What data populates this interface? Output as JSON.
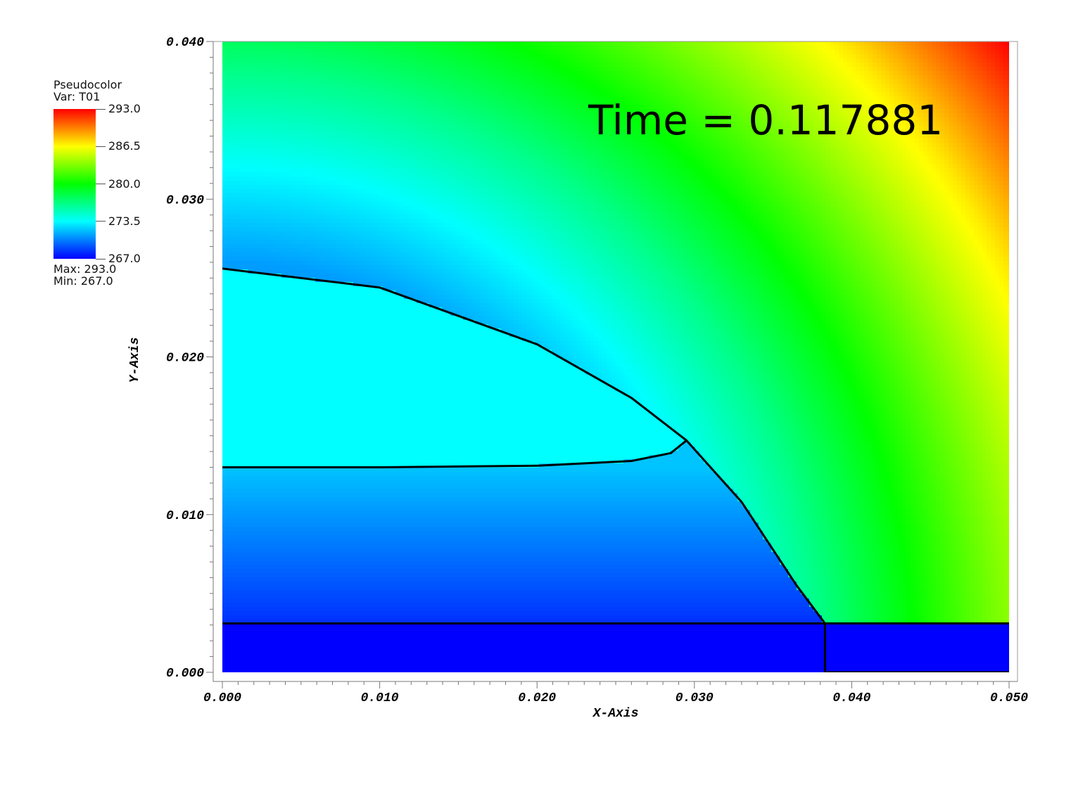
{
  "legend": {
    "title": "Pseudocolor",
    "var_label": "Var: T01",
    "max_label": "Max:  293.0",
    "min_label": "Min:  267.0",
    "ticks": [
      "293.0",
      "286.5",
      "280.0",
      "273.5",
      "267.0"
    ],
    "tick_values": [
      293.0,
      286.5,
      280.0,
      273.5,
      267.0
    ],
    "colormap": [
      "#0000ff",
      "#00ffff",
      "#00ff00",
      "#ffff00",
      "#ff0000"
    ]
  },
  "time_label": "Time = 0.117881",
  "chart_data": {
    "type": "heatmap",
    "title": "",
    "xlabel": "X-Axis",
    "ylabel": "Y-Axis",
    "xlim": [
      0.0,
      0.05
    ],
    "ylim": [
      0.0,
      0.04
    ],
    "x_ticks": [
      "0.000",
      "0.010",
      "0.020",
      "0.030",
      "0.040",
      "0.050"
    ],
    "x_tick_values": [
      0.0,
      0.01,
      0.02,
      0.03,
      0.04,
      0.05
    ],
    "y_ticks": [
      "0.000",
      "0.010",
      "0.020",
      "0.030",
      "0.040"
    ],
    "y_tick_values": [
      0.0,
      0.01,
      0.02,
      0.03,
      0.04
    ],
    "value_range": [
      267.0,
      293.0
    ],
    "field": {
      "center": [
        0.0,
        0.0
      ],
      "radius_breaks": [
        0.026,
        0.032,
        0.038,
        0.044,
        0.05,
        0.056,
        0.064
      ],
      "radius_values": [
        271.0,
        273.5,
        276.5,
        280.0,
        283.5,
        287.0,
        293.0
      ],
      "inner_bottom_y": 0.0,
      "inner_top_y": 0.013,
      "inner_bottom_value": 267.0,
      "inner_top_value": 272.0,
      "substrate_value": 267.0
    },
    "contour_outer": [
      [
        0.0,
        0.0256
      ],
      [
        0.01,
        0.0244
      ],
      [
        0.02,
        0.0208
      ],
      [
        0.026,
        0.0174
      ],
      [
        0.0295,
        0.0147
      ],
      [
        0.033,
        0.0108
      ],
      [
        0.0365,
        0.0055
      ],
      [
        0.0383,
        0.0031
      ]
    ],
    "contour_inner": [
      [
        0.0,
        0.013
      ],
      [
        0.01,
        0.013
      ],
      [
        0.02,
        0.0131
      ],
      [
        0.026,
        0.0134
      ],
      [
        0.0285,
        0.0139
      ],
      [
        0.0295,
        0.0147
      ]
    ],
    "substrate_top_y": 0.0031,
    "substrate_split_x": 0.0383
  }
}
